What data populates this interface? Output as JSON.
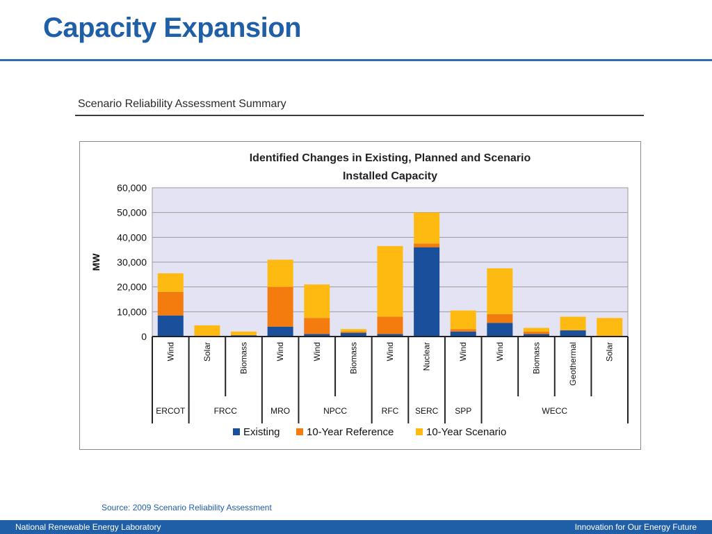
{
  "slide": {
    "title": "Capacity Expansion",
    "section_heading": "Scenario Reliability Assessment Summary",
    "source": "Source:  2009 Scenario Reliability Assessment",
    "footer_left": "National Renewable Energy Laboratory",
    "footer_right": "Innovation for Our Energy Future"
  },
  "colors": {
    "title": "#1f5fa8",
    "existing": "#1a4f9c",
    "reference": "#f47c0e",
    "scenario": "#ffba12",
    "plot_background": "#e3e3f4"
  },
  "chart_data": {
    "type": "bar",
    "stacked": true,
    "title": "Identified Changes in Existing, Planned and Scenario Installed Capacity",
    "title_lines": [
      "Identified Changes in Existing, Planned and Scenario",
      "Installed Capacity"
    ],
    "ylabel": "MW",
    "ylim": [
      0,
      60000
    ],
    "yticks": [
      0,
      10000,
      20000,
      30000,
      40000,
      50000,
      60000
    ],
    "ytick_labels": [
      "0",
      "10,000",
      "20,000",
      "30,000",
      "40,000",
      "50,000",
      "60,000"
    ],
    "grid": true,
    "legend_position": "bottom",
    "categories": [
      "Wind",
      "Solar",
      "Biomass",
      "Wind",
      "Wind",
      "Biomass",
      "Wind",
      "Nuclear",
      "Wind",
      "Wind",
      "Biomass",
      "Geothermal",
      "Solar"
    ],
    "groups": [
      {
        "name": "ERCOT",
        "count": 1
      },
      {
        "name": "FRCC",
        "count": 2
      },
      {
        "name": "MRO",
        "count": 1
      },
      {
        "name": "NPCC",
        "count": 2
      },
      {
        "name": "RFC",
        "count": 1
      },
      {
        "name": "SERC",
        "count": 1
      },
      {
        "name": "SPP",
        "count": 1
      },
      {
        "name": "WECC",
        "count": 4
      }
    ],
    "series": [
      {
        "name": "Existing",
        "values": [
          8500,
          0,
          500,
          4000,
          1000,
          1500,
          1000,
          36000,
          2000,
          5500,
          1000,
          2500,
          0
        ]
      },
      {
        "name": "10-Year Reference",
        "values": [
          9500,
          0,
          0,
          16000,
          6500,
          500,
          7000,
          1500,
          1000,
          3500,
          1000,
          0,
          0
        ]
      },
      {
        "name": "10-Year Scenario",
        "values": [
          7500,
          4500,
          1500,
          11000,
          13500,
          1000,
          28500,
          12500,
          7500,
          18500,
          1500,
          5500,
          7500
        ]
      }
    ]
  }
}
